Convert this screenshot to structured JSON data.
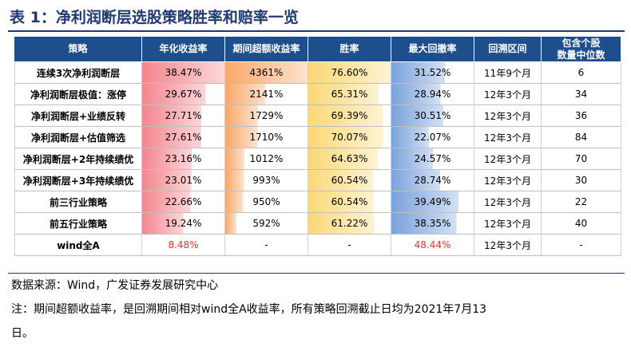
{
  "title": "表 1：净利润断层选股策略胜率和赔率一览",
  "table": {
    "headers": [
      "策略",
      "年化收益率",
      "期间超额收益率",
      "胜率",
      "最大回撤率",
      "回溯区间",
      "包含个股\n数量中位数"
    ],
    "rows": [
      {
        "name": "连续3次净利润断层",
        "annual": "38.47%",
        "excess": "4361%",
        "win": "76.60%",
        "drawdown": "31.52%",
        "period": "11年9个月",
        "count": "6",
        "annual_v": 38.47,
        "excess_v": 4361,
        "win_v": 76.6,
        "drawdown_v": 31.52
      },
      {
        "name": "净利润断层极值：涨停",
        "annual": "29.67%",
        "excess": "2141%",
        "win": "65.31%",
        "drawdown": "28.94%",
        "period": "12年3个月",
        "count": "34",
        "annual_v": 29.67,
        "excess_v": 2141,
        "win_v": 65.31,
        "drawdown_v": 28.94
      },
      {
        "name": "净利润断层+业绩反转",
        "annual": "27.71%",
        "excess": "1729%",
        "win": "69.39%",
        "drawdown": "30.51%",
        "period": "12年3个月",
        "count": "36",
        "annual_v": 27.71,
        "excess_v": 1729,
        "win_v": 69.39,
        "drawdown_v": 30.51
      },
      {
        "name": "净利润断层+估值筛选",
        "annual": "27.61%",
        "excess": "1710%",
        "win": "70.07%",
        "drawdown": "22.07%",
        "period": "12年3个月",
        "count": "84",
        "annual_v": 27.61,
        "excess_v": 1710,
        "win_v": 70.07,
        "drawdown_v": 22.07
      },
      {
        "name": "净利润断层+2年持续绩优",
        "annual": "23.16%",
        "excess": "1012%",
        "win": "64.63%",
        "drawdown": "24.57%",
        "period": "12年3个月",
        "count": "70",
        "annual_v": 23.16,
        "excess_v": 1012,
        "win_v": 64.63,
        "drawdown_v": 24.57
      },
      {
        "name": "净利润断层+3年持续绩优",
        "annual": "23.01%",
        "excess": "993%",
        "win": "60.54%",
        "drawdown": "28.74%",
        "period": "12年3个月",
        "count": "30",
        "annual_v": 23.01,
        "excess_v": 993,
        "win_v": 60.54,
        "drawdown_v": 28.74
      },
      {
        "name": "前三行业策略",
        "annual": "22.66%",
        "excess": "950%",
        "win": "60.54%",
        "drawdown": "39.49%",
        "period": "12年3个月",
        "count": "22",
        "annual_v": 22.66,
        "excess_v": 950,
        "win_v": 60.54,
        "drawdown_v": 39.49
      },
      {
        "name": "前五行业策略",
        "annual": "19.24%",
        "excess": "592%",
        "win": "61.22%",
        "drawdown": "38.35%",
        "period": "12年3个月",
        "count": "40",
        "annual_v": 19.24,
        "excess_v": 592,
        "win_v": 61.22,
        "drawdown_v": 38.35
      },
      {
        "name": "wind全A",
        "annual": "8.48%",
        "excess": "-",
        "win": "-",
        "drawdown": "48.44%",
        "period": "12年3个月",
        "count": "-",
        "annual_v": 8.48,
        "excess_v": 0,
        "win_v": 0,
        "drawdown_v": 48.44,
        "highlight_red": true
      }
    ]
  },
  "source": "数据来源：Wind，广发证券发展研究中心",
  "note_line1": "注：期间超额收益率，是回溯期间相对wind全A收益率，所有策略回溯截止日均为2021年7月13",
  "note_line2": "日。",
  "colors": {
    "title": "#1f3a73",
    "header_bg": "#1f4e8c",
    "annual_bar": "#f4858e",
    "excess_bar": "#f9a86a",
    "win_bar": "#fbd877",
    "drawdown_bar": "#7aa2dc",
    "red_text": "#e6322f"
  }
}
